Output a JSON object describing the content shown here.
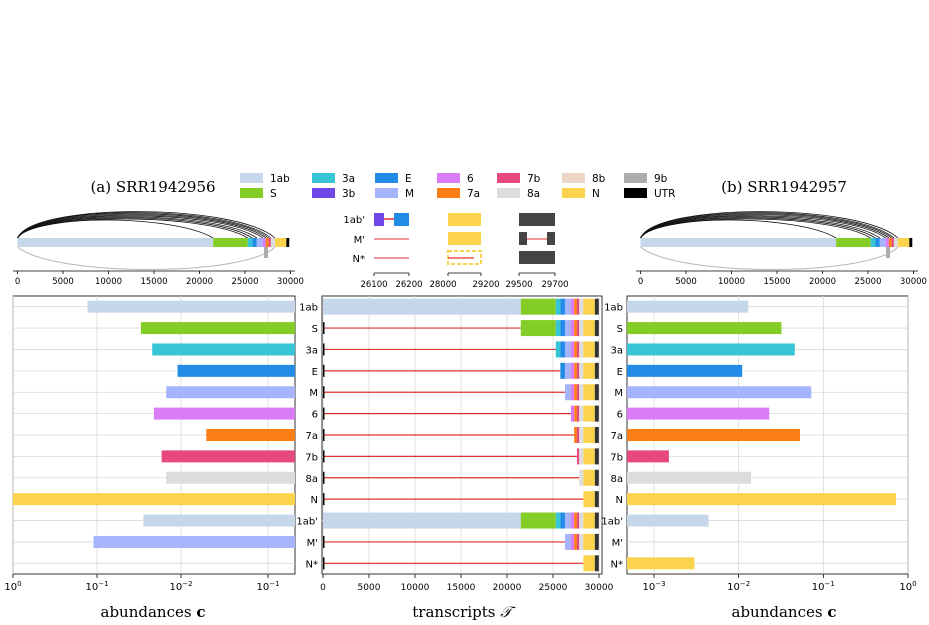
{
  "titles": {
    "left": "(a) SRR1942956",
    "right": "(b) SRR1942957"
  },
  "legend": [
    {
      "label": "1ab",
      "color": "#c5d7e8"
    },
    {
      "label": "S",
      "color": "#84cc26"
    },
    {
      "label": "3a",
      "color": "#37c5d6"
    },
    {
      "label": "3b",
      "color": "#7048e8"
    },
    {
      "label": "E",
      "color": "#228be6"
    },
    {
      "label": "M",
      "color": "#a5b4fc"
    },
    {
      "label": "6",
      "color": "#d97cf5"
    },
    {
      "label": "7a",
      "color": "#fd7e14"
    },
    {
      "label": "7b",
      "color": "#e64980"
    },
    {
      "label": "8a",
      "color": "#dcdcdc"
    },
    {
      "label": "8b",
      "color": "#ecd6c8"
    },
    {
      "label": "N",
      "color": "#fcd34d"
    },
    {
      "label": "9b",
      "color": "#adadad"
    },
    {
      "label": "UTR",
      "color": "#000000"
    }
  ],
  "colors": {
    "junction": "#e03131",
    "grid": "#d9d9d9",
    "utr_end": "#333333",
    "inset_block": "#444444",
    "inset_yellow": "#fcd34d"
  },
  "genome": {
    "ticks": [
      0,
      5000,
      10000,
      15000,
      20000,
      25000,
      30000
    ],
    "ticklabels": [
      "0",
      "5000",
      "10000",
      "15000",
      "20000",
      "25000",
      "30000"
    ],
    "xlim": [
      -500,
      30500
    ],
    "genes": [
      {
        "name": "1ab",
        "start": 0,
        "end": 21500
      },
      {
        "name": "S",
        "start": 21500,
        "end": 25300
      },
      {
        "name": "3a",
        "start": 25300,
        "end": 25800
      },
      {
        "name": "E",
        "start": 25800,
        "end": 26300
      },
      {
        "name": "M",
        "start": 26300,
        "end": 26950
      },
      {
        "name": "6",
        "start": 26950,
        "end": 27300
      },
      {
        "name": "7a",
        "start": 27300,
        "end": 27600
      },
      {
        "name": "7b",
        "start": 27600,
        "end": 27850
      },
      {
        "name": "8a",
        "start": 27850,
        "end": 28300
      },
      {
        "name": "N",
        "start": 28300,
        "end": 29550
      },
      {
        "name": "UTR",
        "start": 29550,
        "end": 29870
      }
    ]
  },
  "inset": {
    "row_labels": [
      "1ab'",
      "M'",
      "N*"
    ],
    "panels": [
      {
        "ticks": [
          "26100",
          "26200"
        ]
      },
      {
        "ticks": [
          "28000",
          "29200"
        ]
      },
      {
        "ticks": [
          "29500",
          "29700"
        ]
      }
    ]
  },
  "chart_data": [
    {
      "type": "bar",
      "orientation": "horizontal",
      "title": "(a) SRR1942956",
      "xlabel": "abundances c",
      "xscale": "log",
      "xlim": [
        1,
        0.2
      ],
      "xtick_labels": [
        "10^0",
        "10^-1",
        "10^-2",
        "10^-1"
      ],
      "categories": [
        "1ab",
        "S",
        "3a",
        "E",
        "M",
        "6",
        "7a",
        "7b",
        "8a",
        "N",
        "1ab'",
        "M'",
        "N*"
      ],
      "values": [
        0.13,
        0.03,
        0.022,
        0.011,
        0.015,
        0.021,
        0.005,
        0.017,
        0.015,
        1.32,
        0.028,
        0.11,
        null
      ]
    },
    {
      "type": "bar",
      "orientation": "horizontal",
      "title": "transcripts",
      "xlabel": "transcripts 𝒯",
      "x_ticks": [
        0,
        5000,
        10000,
        15000,
        20000,
        25000,
        30000
      ],
      "categories": [
        "1ab",
        "S",
        "3a",
        "E",
        "M",
        "6",
        "7a",
        "7b",
        "8a",
        "N",
        "1ab'",
        "M'",
        "N*"
      ],
      "transcript_starts": [
        0,
        21500,
        25300,
        25800,
        26300,
        26950,
        27300,
        27600,
        27850,
        28300,
        0,
        26300,
        28300
      ]
    },
    {
      "type": "bar",
      "orientation": "horizontal",
      "title": "(b) SRR1942957",
      "xlabel": "abundances c",
      "xscale": "log",
      "xlim": [
        0.0005,
        1
      ],
      "xtick_labels": [
        "10^-3",
        "10^-2",
        "10^-1",
        "10^0"
      ],
      "categories": [
        "1ab",
        "S",
        "3a",
        "E",
        "M",
        "6",
        "7a",
        "7b",
        "8a",
        "N",
        "1ab'",
        "M'",
        "N*"
      ],
      "values": [
        0.013,
        0.032,
        0.046,
        0.011,
        0.072,
        0.023,
        0.053,
        0.0015,
        0.014,
        0.72,
        0.0044,
        null,
        0.003
      ]
    }
  ]
}
